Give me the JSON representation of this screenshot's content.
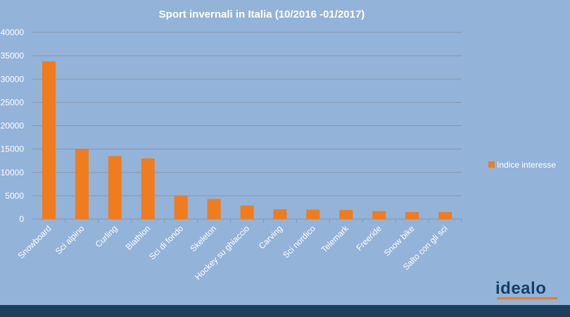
{
  "chart_data": {
    "type": "bar",
    "title": "Sport invernali in Italia (10/2016 -01/2017)",
    "categories": [
      "Snowboard",
      "Sci alpino",
      "Curling",
      "Biathlon",
      "Sci di fondo",
      "Skeleton",
      "Hockey su ghiaccio",
      "Carving",
      "Sci nordico",
      "Telemark",
      "Freeride",
      "Snow bike",
      "Salto con gli sci"
    ],
    "series": [
      {
        "name": "Indice interesse",
        "values": [
          33800,
          15000,
          13500,
          13000,
          5000,
          4300,
          2900,
          2100,
          2000,
          1950,
          1700,
          1500,
          1500
        ]
      }
    ],
    "ylim": [
      0,
      40000
    ],
    "yticks": [
      0,
      5000,
      10000,
      15000,
      20000,
      25000,
      30000,
      35000,
      40000
    ],
    "grid": true,
    "legend_position": "right",
    "bar_color": "#f07c1d"
  },
  "brand": {
    "logo_text": "idealo"
  }
}
